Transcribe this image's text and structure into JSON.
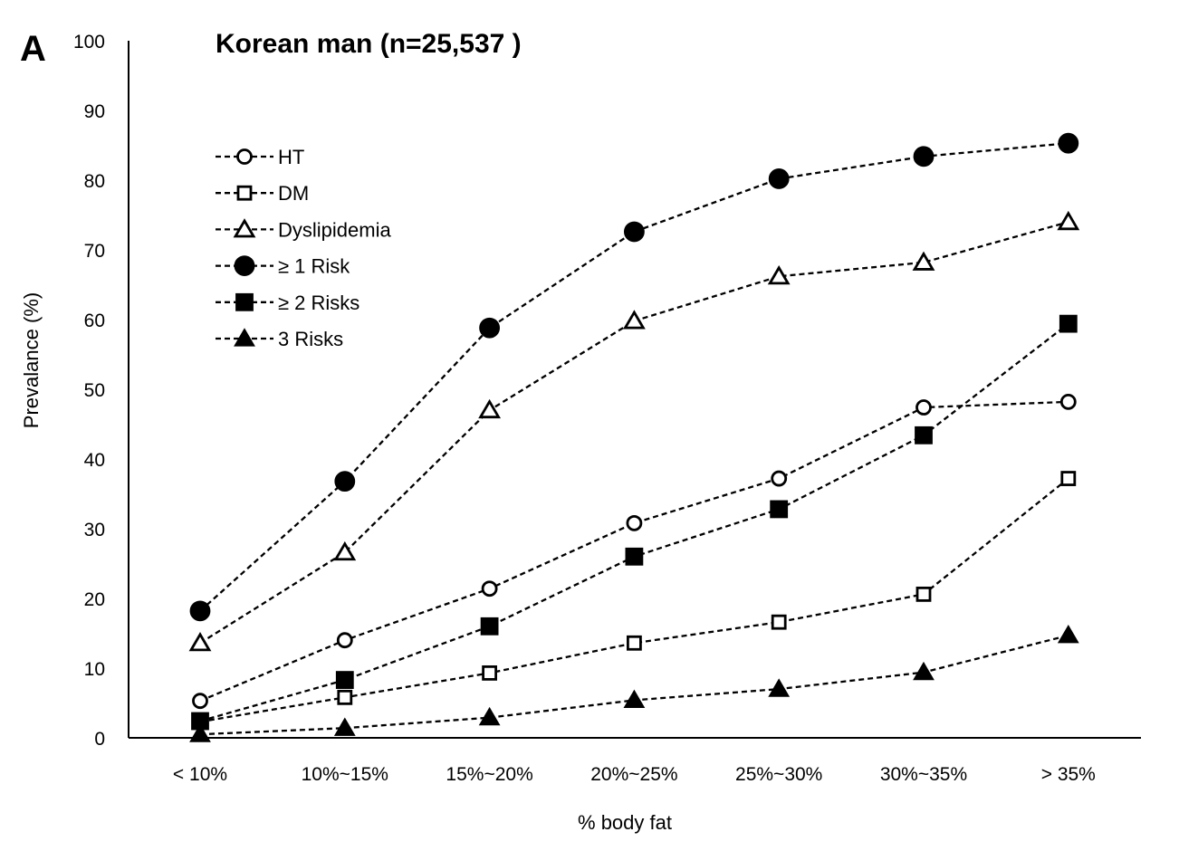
{
  "chart_data": {
    "type": "line",
    "panel_label": "A",
    "title": "Korean man (n=25,537 )",
    "xlabel": "% body fat",
    "ylabel": "Prevalance (%)",
    "ylim": [
      0,
      100
    ],
    "yticks": [
      0,
      10,
      20,
      30,
      40,
      50,
      60,
      70,
      80,
      90,
      100
    ],
    "categories": [
      "< 10%",
      "10%~15%",
      "15%~20%",
      "20%~25%",
      "25%~30%",
      "30%~35%",
      "> 35%"
    ],
    "grid": false,
    "legend_position": "upper-left",
    "line_style": "dashed",
    "series": [
      {
        "name": "HT",
        "marker": "circle-open",
        "values": [
          5.3,
          14.0,
          21.4,
          30.8,
          37.2,
          47.4,
          48.2
        ]
      },
      {
        "name": "DM",
        "marker": "square-open",
        "values": [
          2.3,
          5.8,
          9.3,
          13.6,
          16.6,
          20.6,
          37.2
        ]
      },
      {
        "name": "Dyslipidemia",
        "marker": "triangle-open",
        "values": [
          13.6,
          26.6,
          47.0,
          59.8,
          66.2,
          68.2,
          74.0
        ]
      },
      {
        "name": "≥ 1 Risk",
        "marker": "circle-filled",
        "values": [
          18.2,
          36.8,
          58.8,
          72.6,
          80.2,
          83.4,
          85.3
        ]
      },
      {
        "name": "≥ 2 Risks",
        "marker": "square-filled",
        "values": [
          2.4,
          8.3,
          16.0,
          26.0,
          32.8,
          43.4,
          59.4
        ]
      },
      {
        "name": "3 Risks",
        "marker": "triangle-filled",
        "values": [
          0.5,
          1.4,
          2.9,
          5.4,
          7.0,
          9.4,
          14.7
        ]
      }
    ]
  }
}
